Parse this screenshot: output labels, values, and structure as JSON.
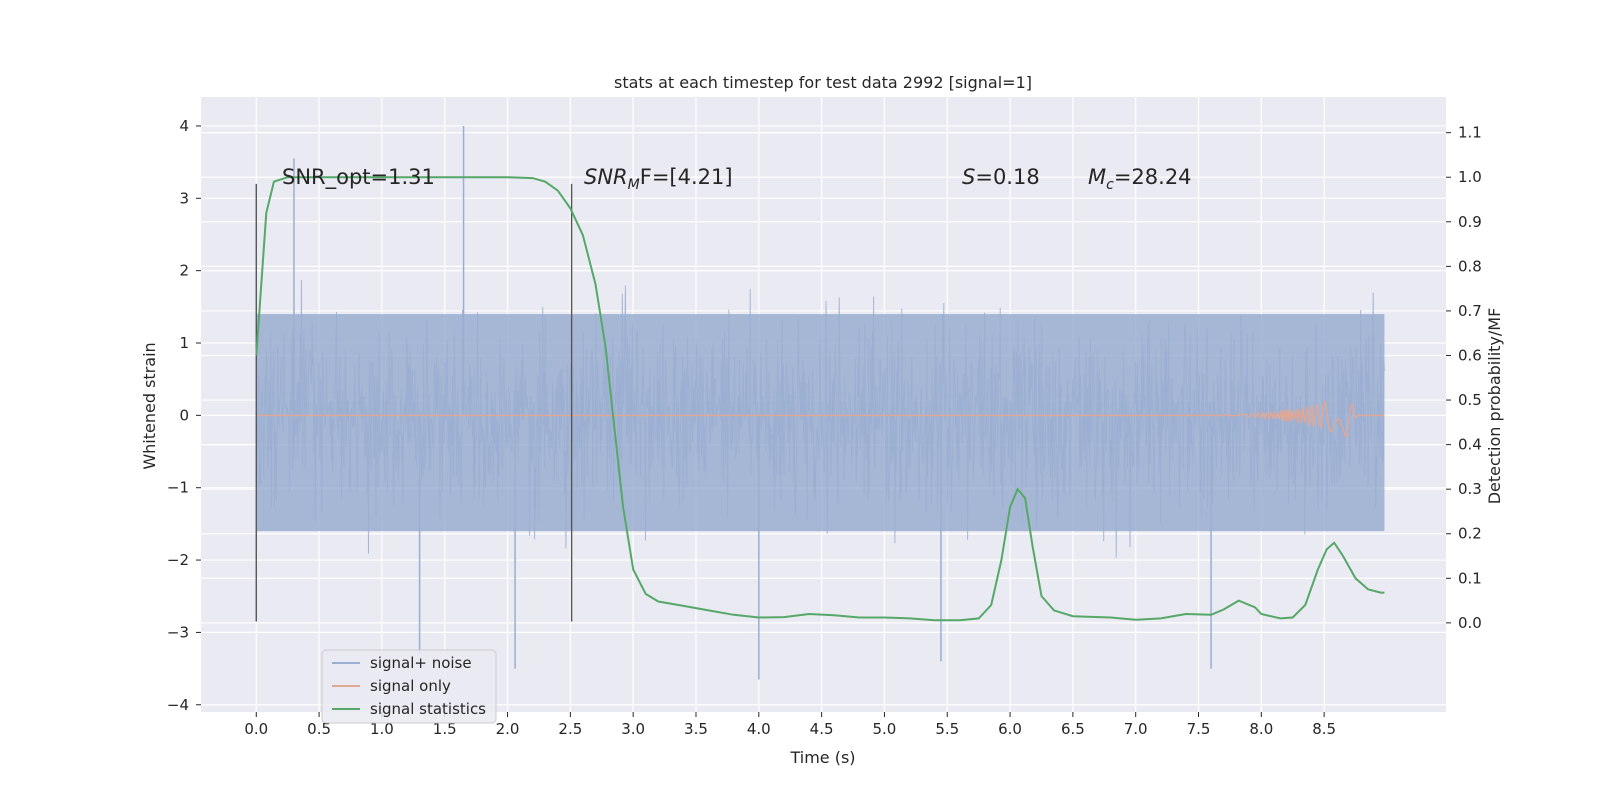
{
  "chart_data": {
    "type": "line",
    "title": "stats at each timestep for test data 2992 [signal=1]",
    "xlabel": "Time (s)",
    "ylabel": "Whitened strain",
    "y2label": "Detection probability/MF",
    "xlim": [
      -0.44,
      9.47
    ],
    "ylim": [
      -4.1,
      4.4
    ],
    "y2lim": [
      -0.2,
      1.18
    ],
    "x_ticks": [
      "0.0",
      "0.5",
      "1.0",
      "1.5",
      "2.0",
      "2.5",
      "3.0",
      "3.5",
      "4.0",
      "4.5",
      "5.0",
      "5.5",
      "6.0",
      "6.5",
      "7.0",
      "7.5",
      "8.0",
      "8.5"
    ],
    "y_ticks": [
      "4",
      "3",
      "2",
      "1",
      "0",
      "−1",
      "−2",
      "−3",
      "−4"
    ],
    "y2_ticks": [
      "1.1",
      "1.0",
      "0.9",
      "0.8",
      "0.7",
      "0.6",
      "0.5",
      "0.4",
      "0.3",
      "0.2",
      "0.1",
      "0.0"
    ],
    "grid": true,
    "legend_position": "lower-left",
    "annotations": {
      "snr_opt": "SNR_opt=1.31",
      "snr_mf_base": "SNR",
      "snr_mf_sub": "M",
      "snr_mf_rest": "F=[4.21]",
      "s_label": "S",
      "s_rest": "=0.18",
      "mc_base": "M",
      "mc_sub": "c",
      "mc_rest": "=28.24"
    },
    "vertical_markers": {
      "x": [
        0.0,
        2.51
      ],
      "y_range": [
        -2.85,
        3.2
      ]
    },
    "series": [
      {
        "name": "signal+ noise",
        "color": "#9aaed1",
        "axis": "left",
        "x_range": [
          0.0,
          8.98
        ],
        "envelope": {
          "core_min": -1.6,
          "core_max": 1.4
        },
        "peaks": [
          {
            "x": 0.3,
            "y": 3.55
          },
          {
            "x": 1.65,
            "y": 4.0
          },
          {
            "x": 1.3,
            "y": -3.3
          },
          {
            "x": 2.06,
            "y": -3.5
          },
          {
            "x": 4.0,
            "y": -3.65
          },
          {
            "x": 5.45,
            "y": -3.4
          },
          {
            "x": 7.6,
            "y": -3.5
          }
        ]
      },
      {
        "name": "signal only",
        "color": "#e0a894",
        "axis": "left",
        "x_range": [
          0.0,
          8.98
        ],
        "chirp_peak": {
          "x": 8.68,
          "y": 0.3
        }
      },
      {
        "name": "signal statistics",
        "color": "#55a868",
        "axis": "right",
        "points": [
          [
            0.0,
            0.6
          ],
          [
            0.08,
            0.92
          ],
          [
            0.14,
            0.99
          ],
          [
            0.25,
            1.0
          ],
          [
            0.6,
            1.0
          ],
          [
            1.0,
            1.0
          ],
          [
            1.5,
            1.0
          ],
          [
            2.0,
            1.0
          ],
          [
            2.2,
            0.998
          ],
          [
            2.3,
            0.99
          ],
          [
            2.4,
            0.97
          ],
          [
            2.5,
            0.93
          ],
          [
            2.6,
            0.87
          ],
          [
            2.7,
            0.76
          ],
          [
            2.78,
            0.62
          ],
          [
            2.85,
            0.44
          ],
          [
            2.92,
            0.26
          ],
          [
            3.0,
            0.12
          ],
          [
            3.1,
            0.065
          ],
          [
            3.2,
            0.048
          ],
          [
            3.4,
            0.038
          ],
          [
            3.6,
            0.028
          ],
          [
            3.8,
            0.018
          ],
          [
            4.0,
            0.012
          ],
          [
            4.2,
            0.013
          ],
          [
            4.4,
            0.02
          ],
          [
            4.6,
            0.017
          ],
          [
            4.8,
            0.012
          ],
          [
            5.0,
            0.012
          ],
          [
            5.2,
            0.01
          ],
          [
            5.4,
            0.006
          ],
          [
            5.6,
            0.006
          ],
          [
            5.75,
            0.01
          ],
          [
            5.85,
            0.04
          ],
          [
            5.93,
            0.14
          ],
          [
            6.0,
            0.26
          ],
          [
            6.06,
            0.3
          ],
          [
            6.12,
            0.28
          ],
          [
            6.18,
            0.17
          ],
          [
            6.25,
            0.06
          ],
          [
            6.35,
            0.028
          ],
          [
            6.5,
            0.015
          ],
          [
            6.8,
            0.012
          ],
          [
            7.0,
            0.007
          ],
          [
            7.2,
            0.01
          ],
          [
            7.4,
            0.02
          ],
          [
            7.6,
            0.018
          ],
          [
            7.7,
            0.03
          ],
          [
            7.82,
            0.05
          ],
          [
            7.95,
            0.035
          ],
          [
            8.0,
            0.02
          ],
          [
            8.15,
            0.01
          ],
          [
            8.25,
            0.012
          ],
          [
            8.35,
            0.04
          ],
          [
            8.45,
            0.12
          ],
          [
            8.52,
            0.165
          ],
          [
            8.58,
            0.18
          ],
          [
            8.65,
            0.15
          ],
          [
            8.75,
            0.1
          ],
          [
            8.85,
            0.075
          ],
          [
            8.95,
            0.068
          ],
          [
            8.98,
            0.068
          ]
        ]
      }
    ]
  }
}
